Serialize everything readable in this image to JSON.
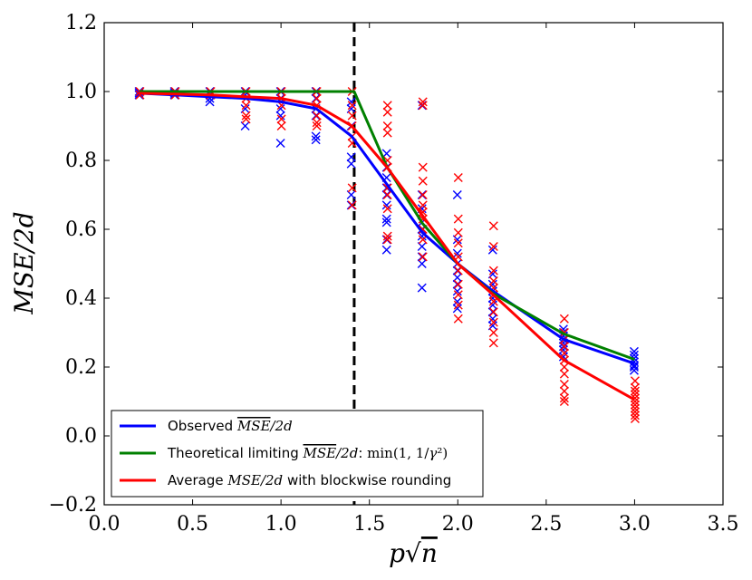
{
  "chart_data": {
    "type": "line",
    "xlabel": "p√n",
    "ylabel": "MSE/2d",
    "xlim": [
      0.0,
      3.5
    ],
    "ylim": [
      -0.2,
      1.2
    ],
    "xticks": [
      "0.0",
      "0.5",
      "1.0",
      "1.5",
      "2.0",
      "2.5",
      "3.0",
      "3.5"
    ],
    "yticks": [
      "−0.2",
      "0.0",
      "0.2",
      "0.4",
      "0.6",
      "0.8",
      "1.0",
      "1.2"
    ],
    "xtick_values": [
      0.0,
      0.5,
      1.0,
      1.5,
      2.0,
      2.5,
      3.0,
      3.5
    ],
    "ytick_values": [
      -0.2,
      0.0,
      0.2,
      0.4,
      0.6,
      0.8,
      1.0,
      1.2
    ],
    "vline_x": 1.414,
    "legend_position": "lower-left",
    "grid": false,
    "series": [
      {
        "name": "Observed MSE/2d",
        "color": "#0000ff",
        "x": [
          0.2,
          0.4,
          0.6,
          0.8,
          1.0,
          1.2,
          1.4,
          1.6,
          1.8,
          2.0,
          2.2,
          2.6,
          3.0
        ],
        "values": [
          0.995,
          0.99,
          0.985,
          0.98,
          0.97,
          0.95,
          0.87,
          0.73,
          0.59,
          0.5,
          0.42,
          0.28,
          0.21
        ]
      },
      {
        "name": "Theoretical limiting MSE/2d: min(1,1/γ²)",
        "color": "#008000",
        "x": [
          0.2,
          0.4,
          0.6,
          0.8,
          1.0,
          1.2,
          1.414,
          1.6,
          1.8,
          2.0,
          2.2,
          2.6,
          3.0
        ],
        "values": [
          1.0,
          1.0,
          1.0,
          1.0,
          1.0,
          1.0,
          1.0,
          0.781,
          0.617,
          0.5,
          0.413,
          0.296,
          0.222
        ]
      },
      {
        "name": "Average MSE/2d with blockwise rounding",
        "color": "#ff0000",
        "x": [
          0.2,
          0.4,
          0.6,
          0.8,
          1.0,
          1.2,
          1.4,
          1.6,
          1.8,
          2.0,
          2.2,
          2.6,
          3.0
        ],
        "values": [
          0.995,
          0.993,
          0.99,
          0.985,
          0.98,
          0.96,
          0.9,
          0.78,
          0.64,
          0.5,
          0.41,
          0.22,
          0.105
        ]
      }
    ],
    "scatter": [
      {
        "color": "#0000ff",
        "points": [
          [
            0.2,
            1.0
          ],
          [
            0.2,
            0.99
          ],
          [
            0.2,
            0.995
          ],
          [
            0.4,
            1.0
          ],
          [
            0.4,
            0.99
          ],
          [
            0.4,
            0.995
          ],
          [
            0.6,
            1.0
          ],
          [
            0.6,
            0.98
          ],
          [
            0.6,
            0.97
          ],
          [
            0.6,
            0.99
          ],
          [
            0.8,
            1.0
          ],
          [
            0.8,
            0.99
          ],
          [
            0.8,
            0.95
          ],
          [
            0.8,
            0.9
          ],
          [
            1.0,
            1.0
          ],
          [
            1.0,
            0.98
          ],
          [
            1.0,
            0.95
          ],
          [
            1.0,
            0.93
          ],
          [
            1.0,
            0.85
          ],
          [
            1.2,
            1.0
          ],
          [
            1.2,
            0.98
          ],
          [
            1.2,
            0.95
          ],
          [
            1.2,
            0.93
          ],
          [
            1.2,
            0.87
          ],
          [
            1.2,
            0.86
          ],
          [
            1.4,
            0.97
          ],
          [
            1.4,
            0.95
          ],
          [
            1.4,
            0.9
          ],
          [
            1.4,
            0.81
          ],
          [
            1.4,
            0.79
          ],
          [
            1.4,
            0.7
          ],
          [
            1.4,
            0.67
          ],
          [
            1.6,
            0.82
          ],
          [
            1.6,
            0.78
          ],
          [
            1.6,
            0.75
          ],
          [
            1.6,
            0.72
          ],
          [
            1.6,
            0.7
          ],
          [
            1.6,
            0.67
          ],
          [
            1.6,
            0.63
          ],
          [
            1.6,
            0.62
          ],
          [
            1.6,
            0.57
          ],
          [
            1.6,
            0.54
          ],
          [
            1.8,
            0.96
          ],
          [
            1.8,
            0.7
          ],
          [
            1.8,
            0.66
          ],
          [
            1.8,
            0.62
          ],
          [
            1.8,
            0.6
          ],
          [
            1.8,
            0.58
          ],
          [
            1.8,
            0.55
          ],
          [
            1.8,
            0.52
          ],
          [
            1.8,
            0.5
          ],
          [
            1.8,
            0.43
          ],
          [
            2.0,
            0.7
          ],
          [
            2.0,
            0.57
          ],
          [
            2.0,
            0.53
          ],
          [
            2.0,
            0.5
          ],
          [
            2.0,
            0.48
          ],
          [
            2.0,
            0.46
          ],
          [
            2.0,
            0.44
          ],
          [
            2.0,
            0.42
          ],
          [
            2.0,
            0.39
          ],
          [
            2.0,
            0.37
          ],
          [
            2.2,
            0.54
          ],
          [
            2.2,
            0.47
          ],
          [
            2.2,
            0.44
          ],
          [
            2.2,
            0.42
          ],
          [
            2.2,
            0.4
          ],
          [
            2.2,
            0.38
          ],
          [
            2.2,
            0.36
          ],
          [
            2.2,
            0.34
          ],
          [
            2.2,
            0.32
          ],
          [
            2.6,
            0.31
          ],
          [
            2.6,
            0.3
          ],
          [
            2.6,
            0.29
          ],
          [
            2.6,
            0.28
          ],
          [
            2.6,
            0.27
          ],
          [
            2.6,
            0.26
          ],
          [
            2.6,
            0.25
          ],
          [
            2.6,
            0.23
          ],
          [
            3.0,
            0.245
          ],
          [
            3.0,
            0.235
          ],
          [
            3.0,
            0.225
          ],
          [
            3.0,
            0.215
          ],
          [
            3.0,
            0.205
          ],
          [
            3.0,
            0.2
          ],
          [
            3.0,
            0.19
          ]
        ]
      },
      {
        "color": "#ff0000",
        "points": [
          [
            0.2,
            1.0
          ],
          [
            0.2,
            0.99
          ],
          [
            0.4,
            1.0
          ],
          [
            0.4,
            0.99
          ],
          [
            0.6,
            1.0
          ],
          [
            0.6,
            0.99
          ],
          [
            0.8,
            1.0
          ],
          [
            0.8,
            0.98
          ],
          [
            0.8,
            0.96
          ],
          [
            0.8,
            0.93
          ],
          [
            0.8,
            0.92
          ],
          [
            1.0,
            1.0
          ],
          [
            1.0,
            0.98
          ],
          [
            1.0,
            0.96
          ],
          [
            1.0,
            0.92
          ],
          [
            1.0,
            0.9
          ],
          [
            1.2,
            1.0
          ],
          [
            1.2,
            0.98
          ],
          [
            1.2,
            0.96
          ],
          [
            1.2,
            0.93
          ],
          [
            1.2,
            0.91
          ],
          [
            1.2,
            0.9
          ],
          [
            1.4,
            1.0
          ],
          [
            1.4,
            0.96
          ],
          [
            1.4,
            0.93
          ],
          [
            1.4,
            0.9
          ],
          [
            1.4,
            0.87
          ],
          [
            1.4,
            0.85
          ],
          [
            1.4,
            0.72
          ],
          [
            1.4,
            0.67
          ],
          [
            1.6,
            0.96
          ],
          [
            1.6,
            0.94
          ],
          [
            1.6,
            0.9
          ],
          [
            1.6,
            0.88
          ],
          [
            1.6,
            0.8
          ],
          [
            1.6,
            0.78
          ],
          [
            1.6,
            0.72
          ],
          [
            1.6,
            0.7
          ],
          [
            1.6,
            0.66
          ],
          [
            1.6,
            0.58
          ],
          [
            1.6,
            0.57
          ],
          [
            1.8,
            0.97
          ],
          [
            1.8,
            0.96
          ],
          [
            1.8,
            0.78
          ],
          [
            1.8,
            0.74
          ],
          [
            1.8,
            0.7
          ],
          [
            1.8,
            0.67
          ],
          [
            1.8,
            0.65
          ],
          [
            1.8,
            0.63
          ],
          [
            1.8,
            0.6
          ],
          [
            1.8,
            0.57
          ],
          [
            1.8,
            0.52
          ],
          [
            2.0,
            0.75
          ],
          [
            2.0,
            0.63
          ],
          [
            2.0,
            0.59
          ],
          [
            2.0,
            0.56
          ],
          [
            2.0,
            0.52
          ],
          [
            2.0,
            0.48
          ],
          [
            2.0,
            0.44
          ],
          [
            2.0,
            0.41
          ],
          [
            2.0,
            0.38
          ],
          [
            2.0,
            0.34
          ],
          [
            2.2,
            0.61
          ],
          [
            2.2,
            0.55
          ],
          [
            2.2,
            0.48
          ],
          [
            2.2,
            0.45
          ],
          [
            2.2,
            0.43
          ],
          [
            2.2,
            0.41
          ],
          [
            2.2,
            0.39
          ],
          [
            2.2,
            0.36
          ],
          [
            2.2,
            0.33
          ],
          [
            2.2,
            0.3
          ],
          [
            2.2,
            0.27
          ],
          [
            2.6,
            0.34
          ],
          [
            2.6,
            0.3
          ],
          [
            2.6,
            0.28
          ],
          [
            2.6,
            0.26
          ],
          [
            2.6,
            0.24
          ],
          [
            2.6,
            0.22
          ],
          [
            2.6,
            0.2
          ],
          [
            2.6,
            0.18
          ],
          [
            2.6,
            0.15
          ],
          [
            2.6,
            0.13
          ],
          [
            2.6,
            0.11
          ],
          [
            2.6,
            0.1
          ],
          [
            3.0,
            0.16
          ],
          [
            3.0,
            0.14
          ],
          [
            3.0,
            0.13
          ],
          [
            3.0,
            0.12
          ],
          [
            3.0,
            0.11
          ],
          [
            3.0,
            0.1
          ],
          [
            3.0,
            0.09
          ],
          [
            3.0,
            0.08
          ],
          [
            3.0,
            0.07
          ],
          [
            3.0,
            0.06
          ],
          [
            3.0,
            0.05
          ]
        ]
      }
    ]
  }
}
